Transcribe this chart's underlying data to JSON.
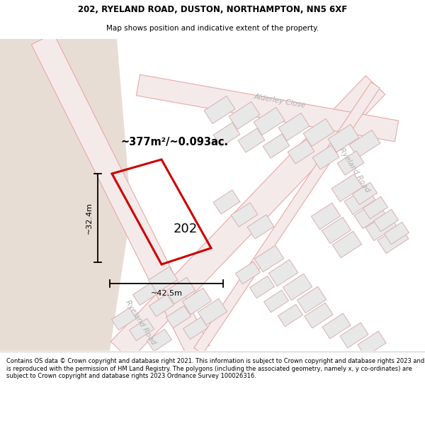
{
  "title_line1": "202, RYELAND ROAD, DUSTON, NORTHAMPTON, NN5 6XF",
  "title_line2": "Map shows position and indicative extent of the property.",
  "footer_text": "Contains OS data © Crown copyright and database right 2021. This information is subject to Crown copyright and database rights 2023 and is reproduced with the permission of HM Land Registry. The polygons (including the associated geometry, namely x, y co-ordinates) are subject to Crown copyright and database rights 2023 Ordnance Survey 100026316.",
  "area_label": "~377m²/~0.093ac.",
  "label_202": "202",
  "dim_width": "~42.5m",
  "dim_height": "~32.4m",
  "road_label_alderley": "Alderley Close",
  "road_label_ryeland_right": "Ryeland Road",
  "road_label_ryeland_bottom": "Ryeland Road",
  "bg_map_color": "#f7f3ee",
  "left_wedge_color": "#e8ddd4",
  "road_fill_color": "#f5eaea",
  "road_edge_color": "#e8b0b0",
  "building_fill": "#e8e8e8",
  "building_edge": "#d8b0b0",
  "highlight_color": "#cc0000",
  "dim_line_color": "#000000",
  "road_label_color": "#b0b0b0",
  "text_color": "#000000"
}
